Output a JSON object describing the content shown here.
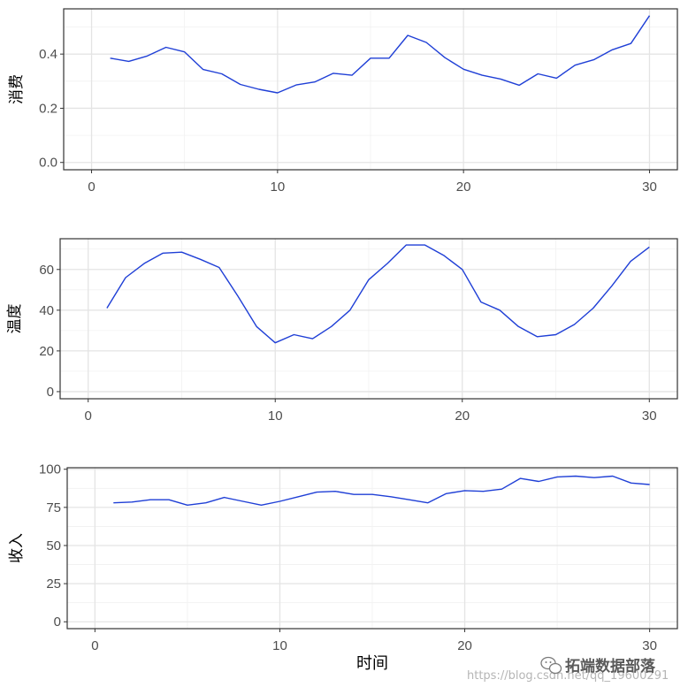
{
  "chart_data": [
    {
      "type": "line",
      "ylabel": "消费",
      "xlim": [
        -1.5,
        31.5
      ],
      "ylim": [
        -0.027,
        0.567
      ],
      "xticks": [
        0,
        10,
        20,
        30
      ],
      "xtick_labels": [
        "0",
        "10",
        "20",
        "30"
      ],
      "yticks": [
        0.0,
        0.2,
        0.4
      ],
      "ytick_labels": [
        "0.0",
        "0.2",
        "0.4"
      ],
      "grid": true,
      "color": "#1f3fd6",
      "x": [
        1,
        2,
        3,
        4,
        5,
        6,
        7,
        8,
        9,
        10,
        11,
        12,
        13,
        14,
        15,
        16,
        17,
        18,
        19,
        20,
        21,
        22,
        23,
        24,
        25,
        26,
        27,
        28,
        29,
        30
      ],
      "values": [
        0.385,
        0.373,
        0.393,
        0.425,
        0.408,
        0.343,
        0.327,
        0.288,
        0.27,
        0.257,
        0.286,
        0.297,
        0.329,
        0.322,
        0.385,
        0.385,
        0.469,
        0.443,
        0.387,
        0.344,
        0.322,
        0.308,
        0.285,
        0.327,
        0.311,
        0.359,
        0.379,
        0.416,
        0.439,
        0.542
      ]
    },
    {
      "type": "line",
      "ylabel": "温度",
      "xlim": [
        -1.5,
        31.5
      ],
      "ylim": [
        -3.5,
        75.1
      ],
      "xticks": [
        0,
        10,
        20,
        30
      ],
      "xtick_labels": [
        "0",
        "10",
        "20",
        "30"
      ],
      "yticks": [
        0,
        20,
        40,
        60
      ],
      "ytick_labels": [
        "0",
        "20",
        "40",
        "60"
      ],
      "grid": true,
      "color": "#1f3fd6",
      "x": [
        1,
        2,
        3,
        4,
        5,
        6,
        7,
        8,
        9,
        10,
        11,
        12,
        13,
        14,
        15,
        16,
        17,
        18,
        19,
        20,
        21,
        22,
        23,
        24,
        25,
        26,
        27,
        28,
        29,
        30
      ],
      "values": [
        41,
        56,
        63,
        68,
        68.5,
        65,
        61,
        47,
        32,
        24,
        28,
        26,
        32,
        40,
        55,
        63,
        72,
        72,
        67,
        60,
        44,
        40,
        32,
        27,
        28,
        33,
        41,
        52,
        64,
        71
      ]
    },
    {
      "type": "line",
      "ylabel": "收入",
      "xlabel": "时间",
      "xlim": [
        -1.5,
        31.5
      ],
      "ylim": [
        -4.5,
        101.0
      ],
      "xticks": [
        0,
        10,
        20,
        30
      ],
      "xtick_labels": [
        "0",
        "10",
        "20",
        "30"
      ],
      "yticks": [
        0,
        25,
        50,
        75,
        100
      ],
      "ytick_labels": [
        "0",
        "25",
        "50",
        "75",
        "100"
      ],
      "grid": true,
      "color": "#1f3fd6",
      "x": [
        1,
        2,
        3,
        4,
        5,
        6,
        7,
        8,
        9,
        10,
        11,
        12,
        13,
        14,
        15,
        16,
        17,
        18,
        19,
        20,
        21,
        22,
        23,
        24,
        25,
        26,
        27,
        28,
        29,
        30
      ],
      "values": [
        78,
        78.5,
        80,
        80,
        76.5,
        78,
        81.5,
        79,
        76.5,
        79,
        82,
        85,
        85.5,
        83.5,
        83.5,
        82,
        80,
        78,
        84,
        86,
        85.5,
        87,
        94,
        92,
        95,
        95.5,
        94.5,
        95.5,
        91,
        90
      ]
    }
  ],
  "watermark": {
    "url_text": "https://blog.csdn.net/qq_19600291",
    "brand_text": "拓端数据部落"
  }
}
